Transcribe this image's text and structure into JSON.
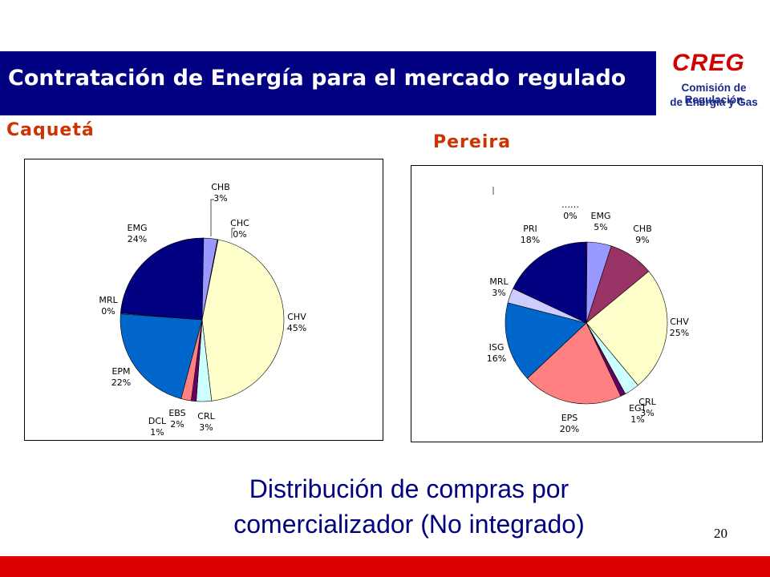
{
  "slide": {
    "title": "Contratación de Energía para el mercado regulado",
    "logo": {
      "word": "CREG",
      "line1": "Comisión de Regulación",
      "line2": "de Energía y Gas"
    },
    "caption_line1": "Distribución de compras por",
    "caption_line2": "comercializador (No integrado)",
    "page_number": "20",
    "colors": {
      "title_bar": "#000080",
      "footer_bar": "#dd0000",
      "section_label": "#cc3300",
      "caption": "#000080",
      "logo_red": "#d40000"
    }
  },
  "chart_data": [
    {
      "type": "pie",
      "title": "Caquetá",
      "slices": [
        {
          "name": "CHB",
          "percent": 3,
          "value_label": "3%",
          "color": "#9999ff"
        },
        {
          "name": "CHC",
          "percent": 0,
          "value_label": "0%",
          "color": "#993366"
        },
        {
          "name": "CHV",
          "percent": 45,
          "value_label": "45%",
          "color": "#ffffcc"
        },
        {
          "name": "CRL",
          "percent": 3,
          "value_label": "3%",
          "color": "#ccffff"
        },
        {
          "name": "DCL",
          "percent": 1,
          "value_label": "1%",
          "color": "#660066"
        },
        {
          "name": "EBS",
          "percent": 2,
          "value_label": "2%",
          "color": "#ff8080"
        },
        {
          "name": "EPM",
          "percent": 22,
          "value_label": "22%",
          "color": "#0066cc"
        },
        {
          "name": "MRL",
          "percent": 0,
          "value_label": "0%",
          "color": "#ccccff"
        },
        {
          "name": "EMG",
          "percent": 24,
          "value_label": "24%",
          "color": "#000080"
        }
      ]
    },
    {
      "type": "pie",
      "title": "Pereira",
      "slices": [
        {
          "name": "EMG",
          "percent": 5,
          "value_label": "5%",
          "color": "#9999ff"
        },
        {
          "name": "CHB",
          "percent": 9,
          "value_label": "9%",
          "color": "#993366"
        },
        {
          "name": "CHV",
          "percent": 25,
          "value_label": "25%",
          "color": "#ffffcc"
        },
        {
          "name": "CRL",
          "percent": 3,
          "value_label": "3%",
          "color": "#ccffff"
        },
        {
          "name": "EGT",
          "percent": 1,
          "value_label": "1%",
          "color": "#660066"
        },
        {
          "name": "EPS",
          "percent": 20,
          "value_label": "20%",
          "color": "#ff8080"
        },
        {
          "name": "ISG",
          "percent": 16,
          "value_label": "16%",
          "color": "#0066cc"
        },
        {
          "name": "MRL",
          "percent": 3,
          "value_label": "3%",
          "color": "#ccccff"
        },
        {
          "name": "PRI",
          "percent": 18,
          "value_label": "18%",
          "color": "#000080"
        },
        {
          "name": "……",
          "percent": 0,
          "value_label": "0%",
          "color": "#ff00ff"
        }
      ]
    }
  ]
}
